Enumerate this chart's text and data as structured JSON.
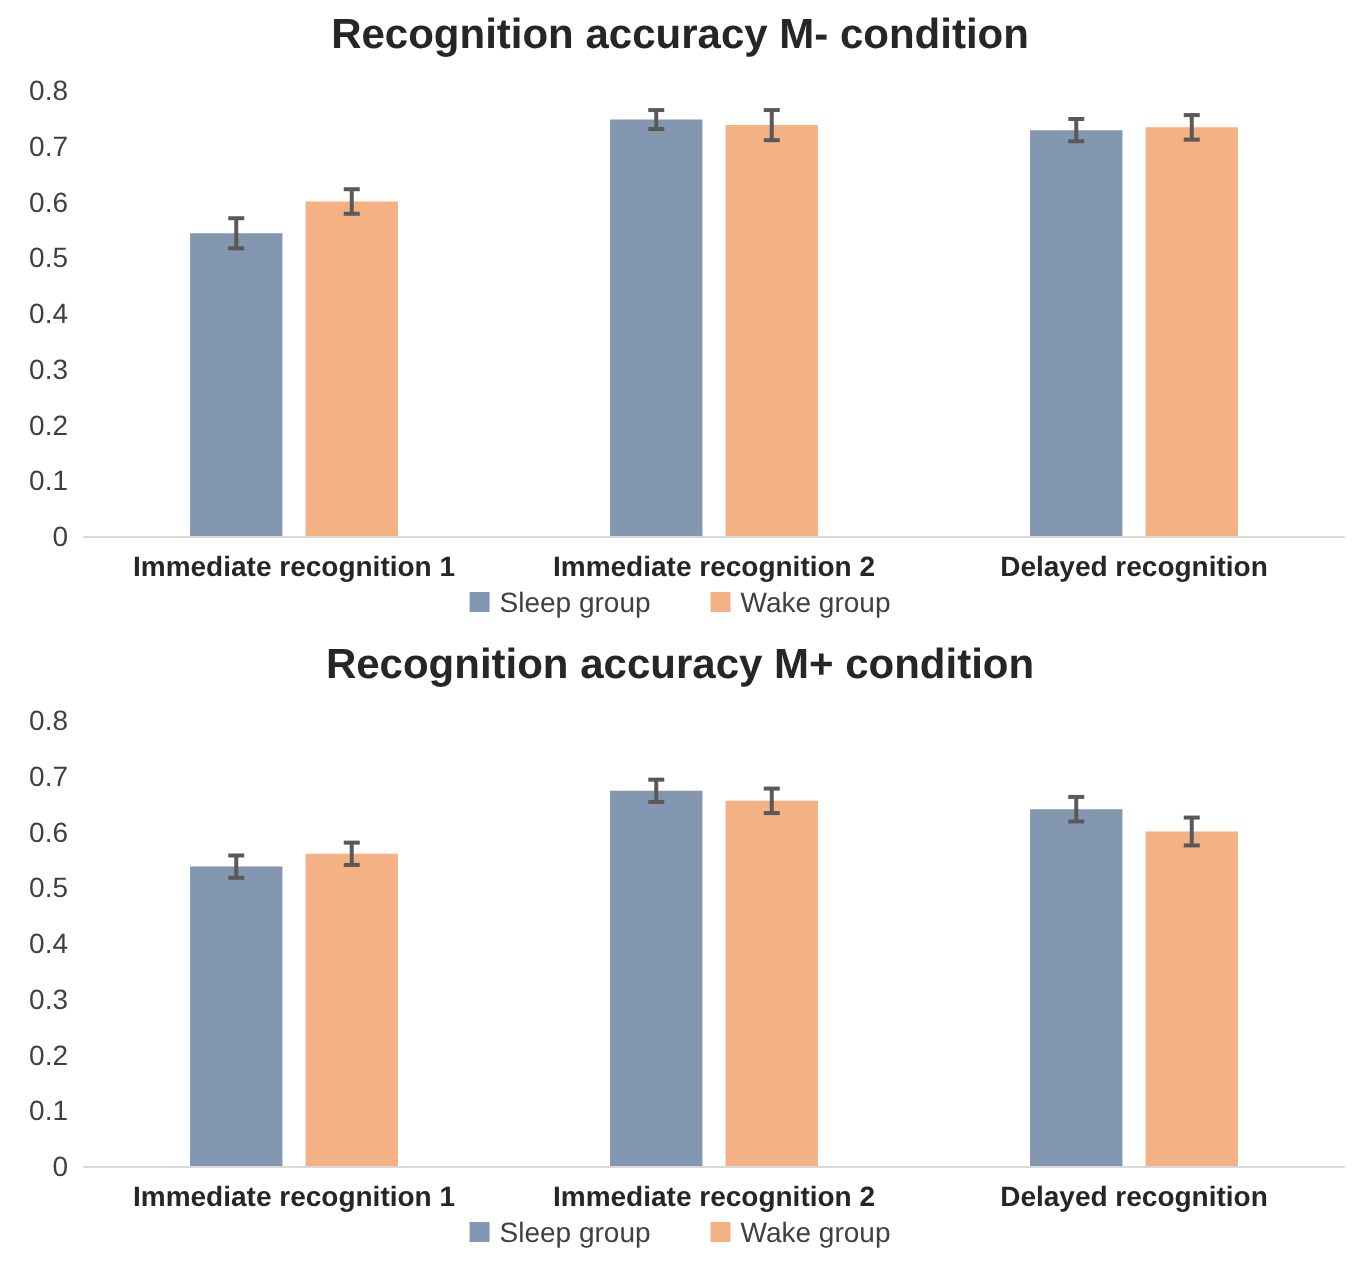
{
  "chart_data": [
    {
      "type": "bar",
      "title": "Recognition accuracy M- condition",
      "categories": [
        "Immediate recognition 1",
        "Immediate recognition 2",
        "Delayed recognition"
      ],
      "series": [
        {
          "name": "Sleep group",
          "color": "#8497b0",
          "values": [
            0.543,
            0.747,
            0.728
          ],
          "errors": [
            0.027,
            0.017,
            0.02
          ]
        },
        {
          "name": "Wake group",
          "color": "#f4b183",
          "values": [
            0.6,
            0.737,
            0.733
          ],
          "errors": [
            0.022,
            0.027,
            0.022
          ]
        }
      ],
      "ylim": [
        0,
        0.8
      ],
      "yticks": [
        0,
        0.1,
        0.2,
        0.3,
        0.4,
        0.5,
        0.6,
        0.7,
        0.8
      ],
      "grid": false,
      "legend": "bottom"
    },
    {
      "type": "bar",
      "title": "Recognition accuracy M+ condition",
      "categories": [
        "Immediate recognition 1",
        "Immediate recognition 2",
        "Delayed recognition"
      ],
      "series": [
        {
          "name": "Sleep group",
          "color": "#8497b0",
          "values": [
            0.537,
            0.673,
            0.64
          ],
          "errors": [
            0.02,
            0.02,
            0.022
          ]
        },
        {
          "name": "Wake group",
          "color": "#f4b183",
          "values": [
            0.56,
            0.655,
            0.6
          ],
          "errors": [
            0.02,
            0.022,
            0.025
          ]
        }
      ],
      "ylim": [
        0,
        0.8
      ],
      "yticks": [
        0,
        0.1,
        0.2,
        0.3,
        0.4,
        0.5,
        0.6,
        0.7,
        0.8
      ],
      "grid": false,
      "legend": "bottom"
    }
  ]
}
